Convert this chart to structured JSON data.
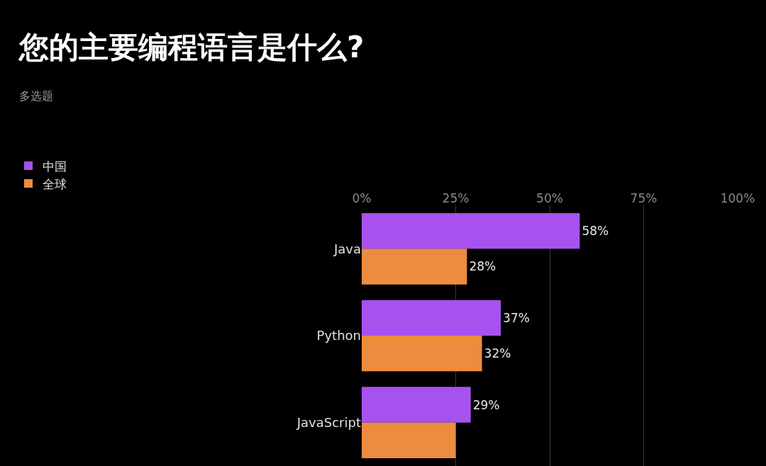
{
  "chart_data": {
    "type": "bar",
    "orientation": "horizontal",
    "title": "您的主要编程语言是什么?",
    "subtitle": "多选题",
    "categories": [
      "Java",
      "Python",
      "JavaScript"
    ],
    "series": [
      {
        "name": "中国",
        "color": "#a752ee",
        "values": [
          58,
          37,
          29
        ],
        "value_labels": [
          "58%",
          "37%",
          "29%"
        ]
      },
      {
        "name": "全球",
        "color": "#ec8c3e",
        "values": [
          28,
          32,
          25
        ],
        "value_labels": [
          "28%",
          "32%",
          null
        ]
      }
    ],
    "xlim": [
      0,
      100
    ],
    "xticks": [
      {
        "value": 0,
        "label": "0%"
      },
      {
        "value": 25,
        "label": "25%"
      },
      {
        "value": 50,
        "label": "50%"
      },
      {
        "value": 75,
        "label": "75%"
      },
      {
        "value": 100,
        "label": "100%"
      }
    ],
    "grid": "x",
    "legend": "top left"
  }
}
